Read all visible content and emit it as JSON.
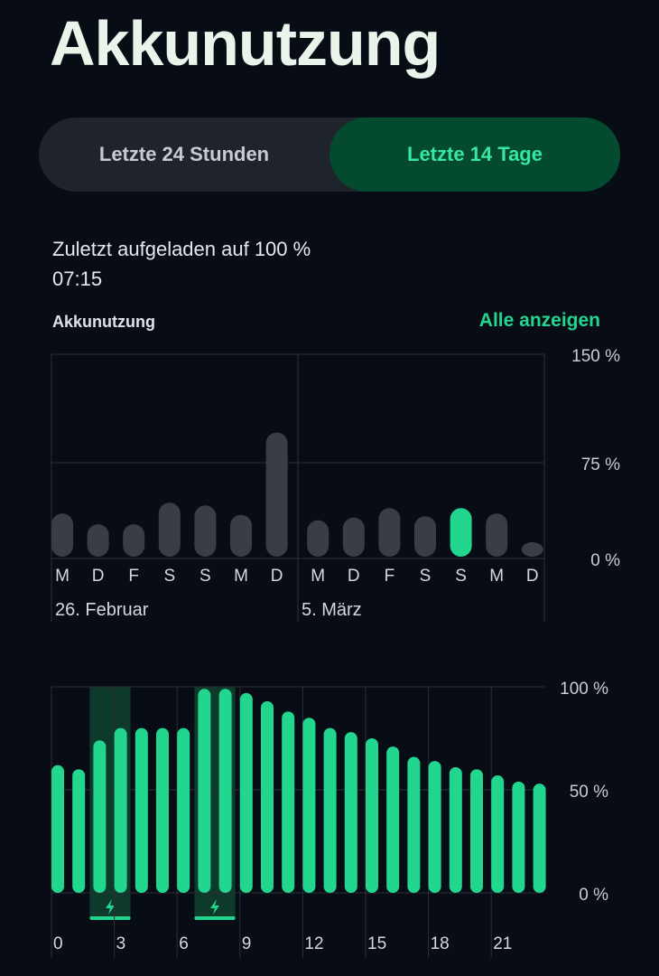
{
  "page": {
    "title": "Akkunutzung"
  },
  "range_toggle": {
    "option_24h": "Letzte 24 Stunden",
    "option_14d": "Letzte 14 Tage",
    "selected": "Letzte 14 Tage"
  },
  "last_charged": {
    "text": "Zuletzt aufgeladen auf 100 %",
    "time": "07:15"
  },
  "section": {
    "label": "Akkunutzung",
    "see_all": "Alle anzeigen"
  },
  "colors": {
    "accent": "#23d690",
    "bar_inactive": "#3a3d43",
    "charge_band": "#0d3a2b"
  },
  "chart_data": [
    {
      "type": "bar",
      "categories": [
        "M",
        "D",
        "F",
        "S",
        "S",
        "M",
        "D",
        "M",
        "D",
        "F",
        "S",
        "S",
        "M",
        "D"
      ],
      "values": [
        32,
        24,
        24,
        40,
        38,
        31,
        92,
        27,
        29,
        36,
        30,
        36,
        32,
        6
      ],
      "selected_index": 11,
      "ylim": [
        0,
        150
      ],
      "y_ticks": [
        "150 %",
        "75 %",
        "0 %"
      ],
      "week_labels": [
        "26. Februar",
        "5. März"
      ]
    },
    {
      "type": "bar",
      "categories": [
        "0",
        "1",
        "2",
        "3",
        "4",
        "5",
        "6",
        "7",
        "8",
        "9",
        "10",
        "11",
        "12",
        "13",
        "14",
        "15",
        "16",
        "17",
        "18",
        "19",
        "20",
        "21",
        "22",
        "23"
      ],
      "values": [
        62,
        60,
        74,
        80,
        80,
        80,
        80,
        99,
        99,
        97,
        93,
        88,
        85,
        80,
        78,
        75,
        71,
        66,
        64,
        61,
        60,
        57,
        54,
        53
      ],
      "ylim": [
        0,
        100
      ],
      "y_ticks": [
        "100 %",
        "50 %",
        "0 %"
      ],
      "x_tick_labels": [
        "0",
        "3",
        "6",
        "9",
        "12",
        "15",
        "18",
        "21"
      ],
      "charging_periods": [
        [
          2,
          3
        ],
        [
          7,
          8
        ]
      ]
    }
  ]
}
